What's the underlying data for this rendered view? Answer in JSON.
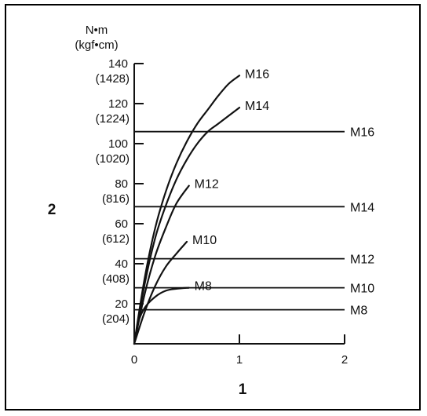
{
  "chart_data": {
    "type": "line",
    "title": "",
    "xlabel": "1",
    "ylabel": "2",
    "y_unit_primary": "N•m",
    "y_unit_secondary": "(kgf•cm)",
    "xlim": [
      0,
      2
    ],
    "ylim": [
      0,
      140
    ],
    "x_ticks": [
      "0",
      "1",
      "2"
    ],
    "y_ticks": [
      {
        "value": 20,
        "label": "20",
        "alt_label": "(204)"
      },
      {
        "value": 40,
        "label": "40",
        "alt_label": "(408)"
      },
      {
        "value": 60,
        "label": "60",
        "alt_label": "(612)"
      },
      {
        "value": 80,
        "label": "80",
        "alt_label": "(816)"
      },
      {
        "value": 100,
        "label": "100",
        "alt_label": "(1020)"
      },
      {
        "value": 120,
        "label": "120",
        "alt_label": "(1224)"
      },
      {
        "value": 140,
        "label": "140",
        "alt_label": "(1428)"
      }
    ],
    "grid": false,
    "series": [
      {
        "name": "M8",
        "x": [
          0,
          0.04,
          0.1,
          0.2,
          0.3,
          0.4,
          0.52
        ],
        "y": [
          0,
          11,
          18,
          23.5,
          26.5,
          27.5,
          28
        ]
      },
      {
        "name": "M10",
        "x": [
          0,
          0.1,
          0.2,
          0.3,
          0.4,
          0.5
        ],
        "y": [
          0,
          16,
          29,
          38.5,
          45,
          51
        ]
      },
      {
        "name": "M12",
        "x": [
          0,
          0.1,
          0.2,
          0.3,
          0.4,
          0.52
        ],
        "y": [
          0,
          25,
          44,
          58,
          70,
          79
        ]
      },
      {
        "name": "M14",
        "x": [
          0,
          0.1,
          0.2,
          0.3,
          0.4,
          0.5,
          0.6,
          0.7,
          0.8,
          1.0
        ],
        "y": [
          0,
          30,
          53,
          69,
          82,
          92,
          100,
          106,
          110,
          118
        ]
      },
      {
        "name": "M16",
        "x": [
          0,
          0.1,
          0.2,
          0.3,
          0.4,
          0.5,
          0.6,
          0.7,
          0.8,
          0.9,
          1.0
        ],
        "y": [
          0,
          33,
          58,
          76,
          90,
          101,
          110,
          117,
          124,
          130,
          134
        ]
      }
    ],
    "reference_lines": [
      {
        "name": "M16",
        "y": 106
      },
      {
        "name": "M14",
        "y": 68.5
      },
      {
        "name": "M12",
        "y": 42.5
      },
      {
        "name": "M10",
        "y": 28
      },
      {
        "name": "M8",
        "y": 17
      }
    ]
  }
}
